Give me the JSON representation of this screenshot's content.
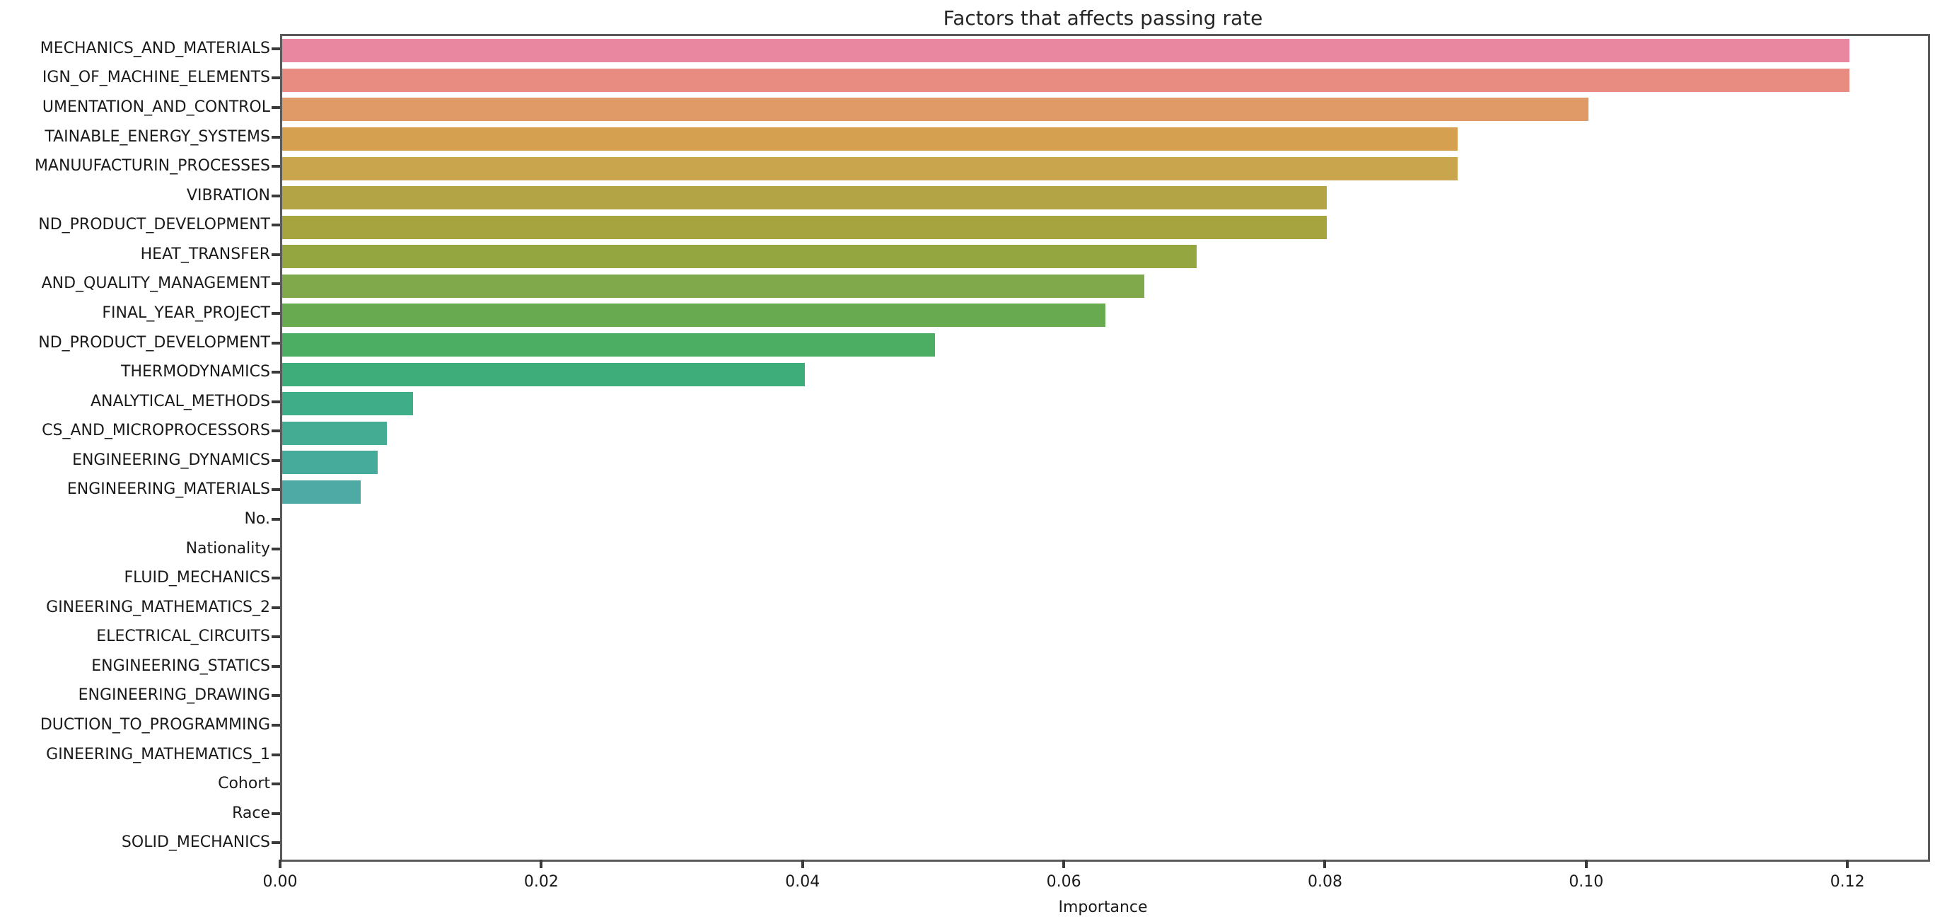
{
  "chart_data": {
    "type": "bar",
    "orientation": "horizontal",
    "title": "Factors that affects passing rate",
    "xlabel": "Importance",
    "xlim": [
      0,
      0.126
    ],
    "grid": false,
    "legend": "none",
    "xticks": [
      {
        "value": 0.0,
        "label": "0.00"
      },
      {
        "value": 0.02,
        "label": "0.02"
      },
      {
        "value": 0.04,
        "label": "0.04"
      },
      {
        "value": 0.06,
        "label": "0.06"
      },
      {
        "value": 0.08,
        "label": "0.08"
      },
      {
        "value": 0.1,
        "label": "0.10"
      },
      {
        "value": 0.12,
        "label": "0.12"
      }
    ],
    "categories": [
      "MECHANICS_AND_MATERIALS",
      "IGN_OF_MACHINE_ELEMENTS",
      "UMENTATION_AND_CONTROL",
      "TAINABLE_ENERGY_SYSTEMS",
      "MANUUFACTURIN_PROCESSES",
      "VIBRATION",
      "ND_PRODUCT_DEVELOPMENT",
      "HEAT_TRANSFER",
      "AND_QUALITY_MANAGEMENT",
      "FINAL_YEAR_PROJECT",
      "ND_PRODUCT_DEVELOPMENT",
      "THERMODYNAMICS",
      "ANALYTICAL_METHODS",
      "CS_AND_MICROPROCESSORS",
      "ENGINEERING_DYNAMICS",
      "ENGINEERING_MATERIALS",
      "No.",
      "Nationality",
      "FLUID_MECHANICS",
      "GINEERING_MATHEMATICS_2",
      "ELECTRICAL_CIRCUITS",
      "ENGINEERING_STATICS",
      "ENGINEERING_DRAWING",
      "DUCTION_TO_PROGRAMMING",
      "GINEERING_MATHEMATICS_1",
      "Cohort",
      "Race",
      "SOLID_MECHANICS"
    ],
    "values": [
      0.12,
      0.12,
      0.1,
      0.09,
      0.09,
      0.08,
      0.08,
      0.07,
      0.066,
      0.063,
      0.05,
      0.04,
      0.01,
      0.008,
      0.0073,
      0.006,
      0,
      0,
      0,
      0,
      0,
      0,
      0,
      0,
      0,
      0,
      0,
      0
    ],
    "bar_colors": [
      "#e8879f",
      "#e88c82",
      "#e09a68",
      "#d5a04f",
      "#c9a54d",
      "#b3a545",
      "#a5a43e",
      "#93a63f",
      "#7fa94a",
      "#67aa4f",
      "#4bae63",
      "#3fad79",
      "#3fad88",
      "#43ac92",
      "#47ab9b",
      "#4daaa4"
    ],
    "axis_color": "#3a3a3a",
    "spine_color": "#5a5a5a",
    "text_color": "#1a1a1a"
  }
}
